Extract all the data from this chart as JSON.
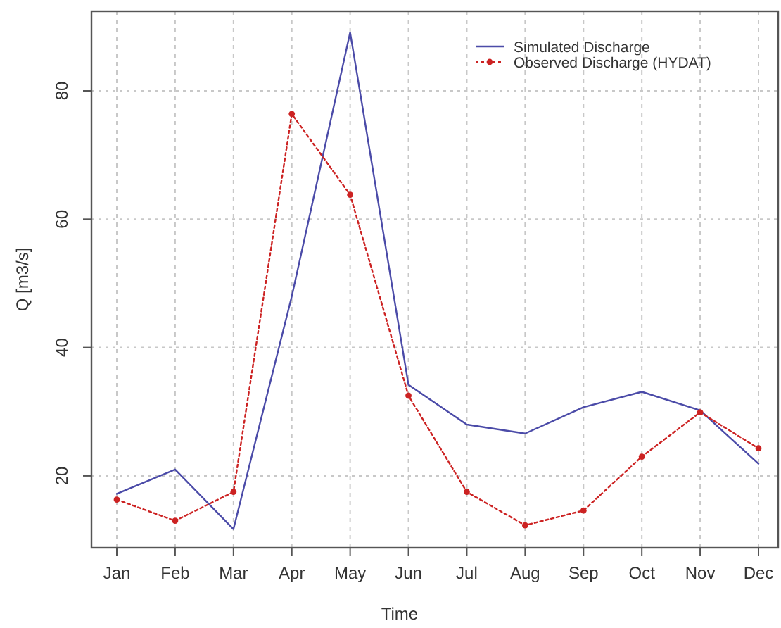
{
  "chart_data": {
    "type": "line",
    "xlabel": "Time",
    "ylabel": "Q [m3/s]",
    "categories": [
      "Jan",
      "Feb",
      "Mar",
      "Apr",
      "May",
      "Jun",
      "Jul",
      "Aug",
      "Sep",
      "Oct",
      "Nov",
      "Dec"
    ],
    "ylim": [
      8.8,
      92.4
    ],
    "yticks": [
      20,
      40,
      60,
      80
    ],
    "grid": true,
    "legend": "top right",
    "series": [
      {
        "name": "Simulated Discharge",
        "color": "#4b4ba8",
        "marker": "none",
        "line_style": "solid",
        "values": [
          17.2,
          21.0,
          11.7,
          48,
          89.1,
          34.2,
          28.0,
          26.6,
          30.7,
          33.1,
          30.2,
          21.9
        ]
      },
      {
        "name": "Observed Discharge (HYDAT)",
        "color": "#cc2222",
        "marker": "circle",
        "line_style": "dotted",
        "values": [
          16.3,
          13.0,
          17.5,
          76.4,
          63.8,
          32.5,
          17.5,
          12.3,
          14.6,
          23.0,
          29.9,
          24.3
        ]
      }
    ]
  }
}
